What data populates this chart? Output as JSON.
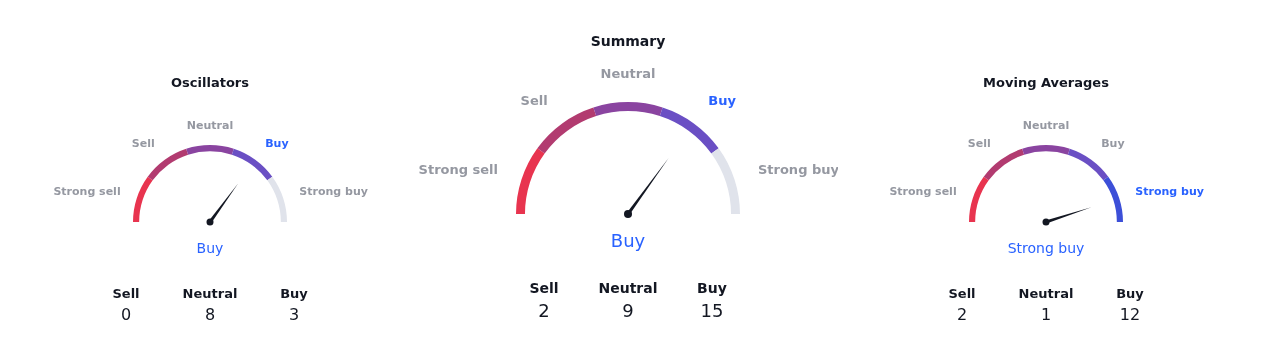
{
  "chart_data": [
    {
      "type": "donut",
      "title": "Oscillators",
      "categories": [
        "Strong sell",
        "Sell",
        "Neutral",
        "Buy",
        "Strong buy"
      ],
      "values": [
        20,
        20,
        20,
        20,
        20
      ],
      "colors": [
        "#e8344f",
        "#b23b70",
        "#8a44a0",
        "#6a4fc4",
        "#e0e3eb"
      ],
      "needle": "Buy",
      "annotations": [
        "Sell",
        "Neutral",
        "Buy",
        "0",
        "8",
        "3"
      ]
    },
    {
      "type": "donut",
      "title": "Summary",
      "categories": [
        "Strong sell",
        "Sell",
        "Neutral",
        "Buy",
        "Strong buy"
      ],
      "values": [
        20,
        20,
        20,
        20,
        20
      ],
      "colors": [
        "#e8344f",
        "#b23b70",
        "#8a44a0",
        "#6a4fc4",
        "#e0e3eb"
      ],
      "needle": "Buy",
      "annotations": [
        "Sell",
        "Neutral",
        "Buy",
        "2",
        "9",
        "15"
      ]
    },
    {
      "type": "donut",
      "title": "Moving Averages",
      "categories": [
        "Strong sell",
        "Sell",
        "Neutral",
        "Buy",
        "Strong buy"
      ],
      "values": [
        20,
        20,
        20,
        20,
        20
      ],
      "colors": [
        "#e8344f",
        "#b23b70",
        "#8a44a0",
        "#6a4fc4",
        "#3c4fd8"
      ],
      "needle": "Strong buy",
      "annotations": [
        "Sell",
        "Neutral",
        "Buy",
        "2",
        "1",
        "12"
      ]
    }
  ]
}
